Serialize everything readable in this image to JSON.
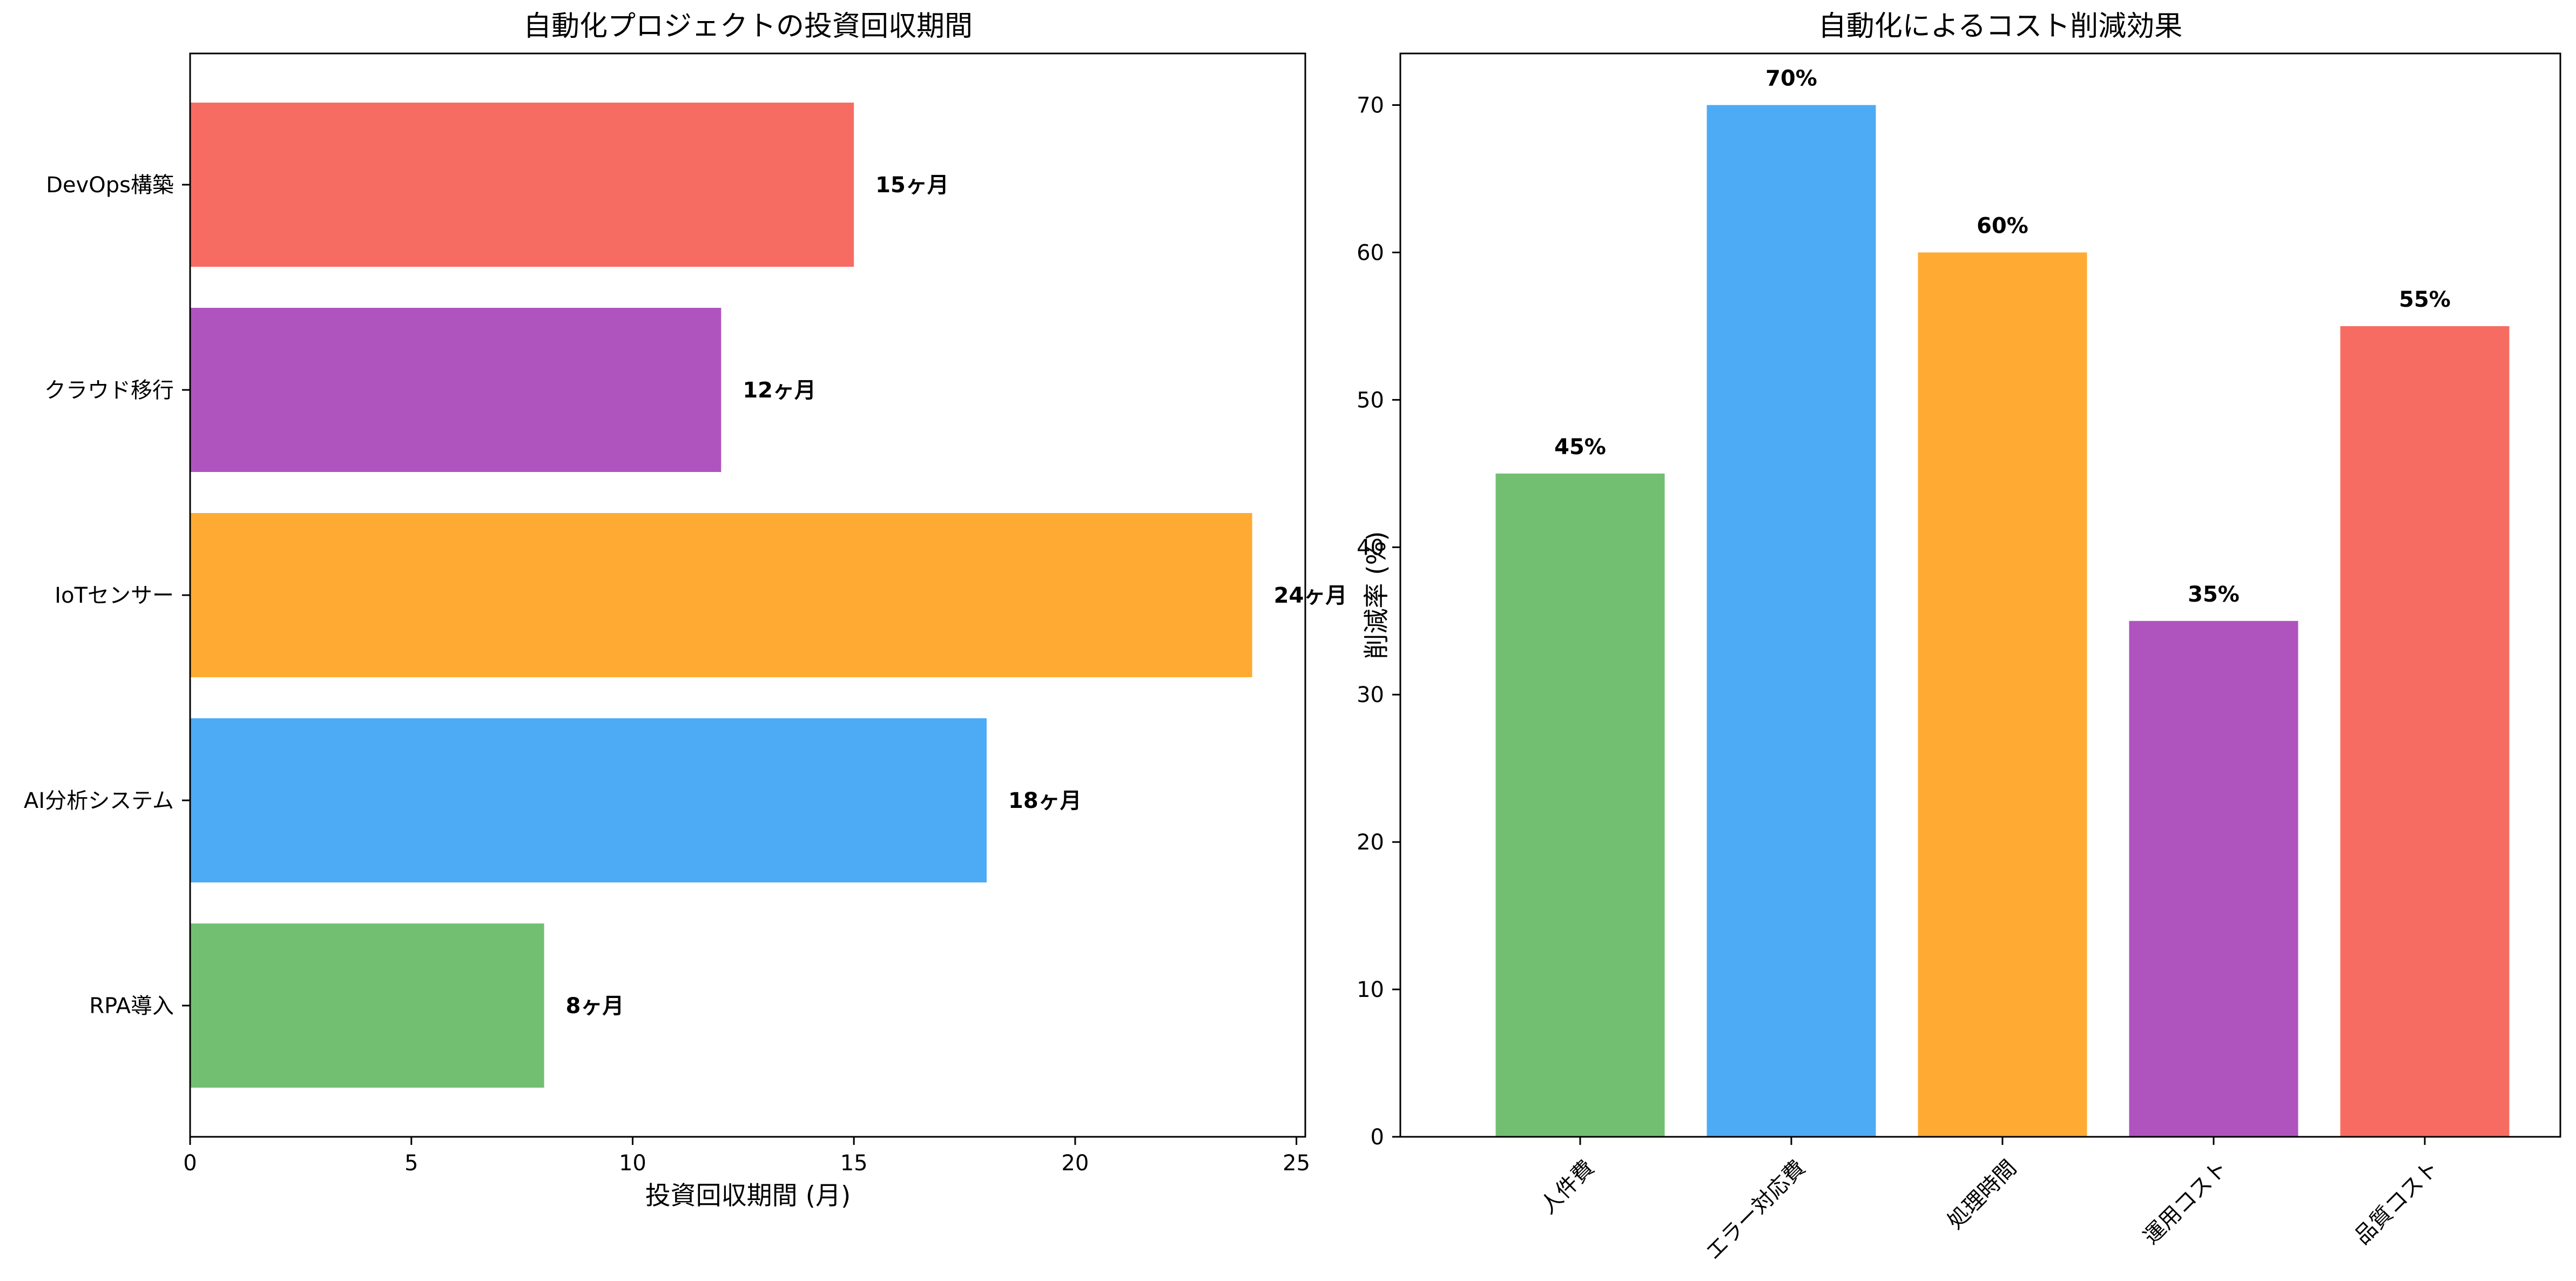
{
  "colors": {
    "green": "#72BF72",
    "blue": "#4DABF5",
    "orange": "#FFAB33",
    "purple": "#AF54BF",
    "red": "#F76C62"
  },
  "chart_data": [
    {
      "type": "bar",
      "orientation": "horizontal",
      "title": "自動化プロジェクトの投資回収期間",
      "xlabel": "投資回収期間 (月)",
      "ylabel": "",
      "xlim": [
        0,
        25.2
      ],
      "xticks": [
        0,
        5,
        10,
        15,
        20,
        25
      ],
      "categories": [
        "RPA導入",
        "AI分析システム",
        "IoTセンサー",
        "クラウド移行",
        "DevOps構築"
      ],
      "values": [
        8,
        18,
        24,
        12,
        15
      ],
      "value_labels": [
        "8ヶ月",
        "18ヶ月",
        "24ヶ月",
        "12ヶ月",
        "15ヶ月"
      ],
      "bar_colors": [
        "#72BF72",
        "#4DABF5",
        "#FFAB33",
        "#AF54BF",
        "#F76C62"
      ],
      "grid": false
    },
    {
      "type": "bar",
      "orientation": "vertical",
      "title": "自動化によるコスト削減効果",
      "xlabel": "",
      "ylabel": "削減率 (%)",
      "ylim": [
        0,
        73.5
      ],
      "yticks": [
        0,
        10,
        20,
        30,
        40,
        50,
        60,
        70
      ],
      "categories": [
        "人件費",
        "エラー対応費",
        "処理時間",
        "運用コスト",
        "品質コスト"
      ],
      "values": [
        45,
        70,
        60,
        35,
        55
      ],
      "value_labels": [
        "45%",
        "70%",
        "60%",
        "35%",
        "55%"
      ],
      "bar_colors": [
        "#72BF72",
        "#4DABF5",
        "#FFAB33",
        "#AF54BF",
        "#F76C62"
      ],
      "grid": false
    }
  ]
}
